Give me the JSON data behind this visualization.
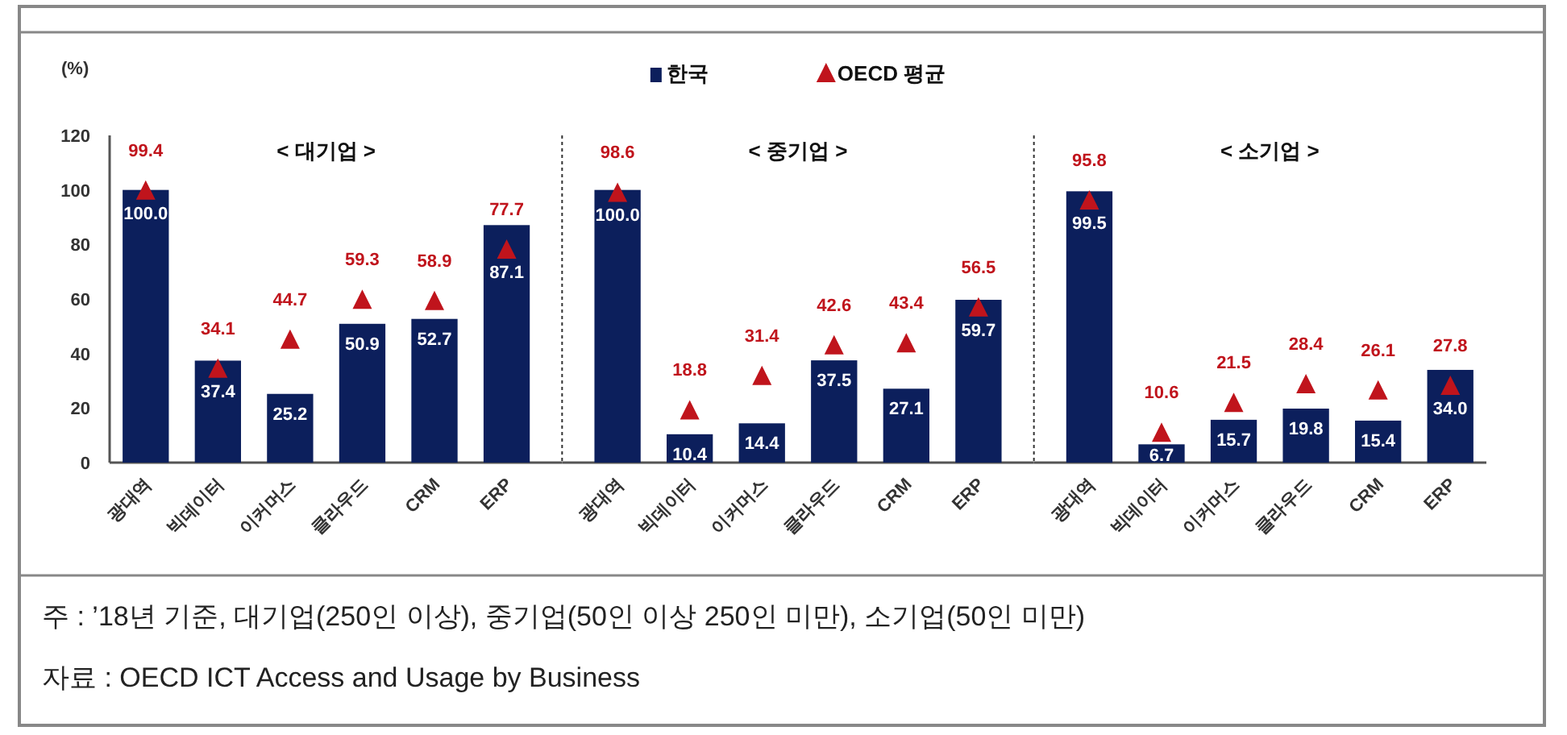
{
  "chart_data": [
    {
      "type": "bar",
      "title": "< 대기업 >",
      "ylabel": "(%)",
      "categories": [
        "광대역",
        "빅데이터",
        "이커머스",
        "클라우드",
        "CRM",
        "ERP"
      ],
      "series": [
        {
          "name": "한국",
          "color": "#0c1f5c",
          "values": [
            100.0,
            37.4,
            25.2,
            50.9,
            52.7,
            87.1
          ],
          "value_labels": [
            "100.0",
            "37.4",
            "25.2",
            "50.9",
            "52.7",
            "87.1"
          ]
        },
        {
          "name": "OECD 평균",
          "type": "scatter",
          "marker": "triangle",
          "color": "#c0141c",
          "values": [
            99.4,
            34.1,
            44.7,
            59.3,
            58.9,
            77.7
          ],
          "value_labels": [
            "99.4",
            "34.1",
            "44.7",
            "59.3",
            "58.9",
            "77.7"
          ]
        }
      ],
      "ylim": [
        0,
        120
      ],
      "yticks": [
        0,
        20,
        40,
        60,
        80,
        100,
        120
      ],
      "legend": "top",
      "annotations": [
        "주 : ’18년 기준, 대기업(250인 이상), 중기업(50인 이상 250인 미만), 소기업(50인 미만)",
        "자료 : OECD ICT Access and Usage by Business"
      ]
    },
    {
      "type": "bar",
      "title": "< 중기업 >",
      "categories": [
        "광대역",
        "빅데이터",
        "이커머스",
        "클라우드",
        "CRM",
        "ERP"
      ],
      "series": [
        {
          "color": "#0c1f5c",
          "values": [
            100.0,
            10.4,
            14.4,
            37.5,
            27.1,
            59.7
          ],
          "value_labels": [
            "100.0",
            "10.4",
            "14.4",
            "37.5",
            "27.1",
            "59.7"
          ]
        },
        {
          "type": "scatter",
          "marker": "triangle",
          "color": "#c0141c",
          "values": [
            98.6,
            18.8,
            31.4,
            42.6,
            43.4,
            56.5
          ],
          "value_labels": [
            "98.6",
            "18.8",
            "31.4",
            "42.6",
            "43.4",
            "56.5"
          ]
        }
      ],
      "ylim": [
        0,
        120
      ],
      "tick_labels": "x"
    },
    {
      "type": "bar",
      "title": "< 소기업 >",
      "categories": [
        "광대역",
        "빅데이터",
        "이커머스",
        "클라우드",
        "CRM",
        "ERP"
      ],
      "series": [
        {
          "color": "#0c1f5c",
          "values": [
            99.5,
            6.7,
            15.7,
            19.8,
            15.4,
            34.0
          ],
          "value_labels": [
            "99.5",
            "6.7",
            "15.7",
            "19.8",
            "15.4",
            "34.0"
          ]
        },
        {
          "type": "scatter",
          "marker": "triangle",
          "color": "#c0141c",
          "values": [
            95.8,
            10.6,
            21.5,
            28.4,
            26.1,
            27.8
          ],
          "value_labels": [
            "95.8",
            "10.6",
            "21.5",
            "28.4",
            "26.1",
            "27.8"
          ]
        }
      ],
      "ylim": [
        0,
        120
      ],
      "tick_labels": "x"
    }
  ]
}
